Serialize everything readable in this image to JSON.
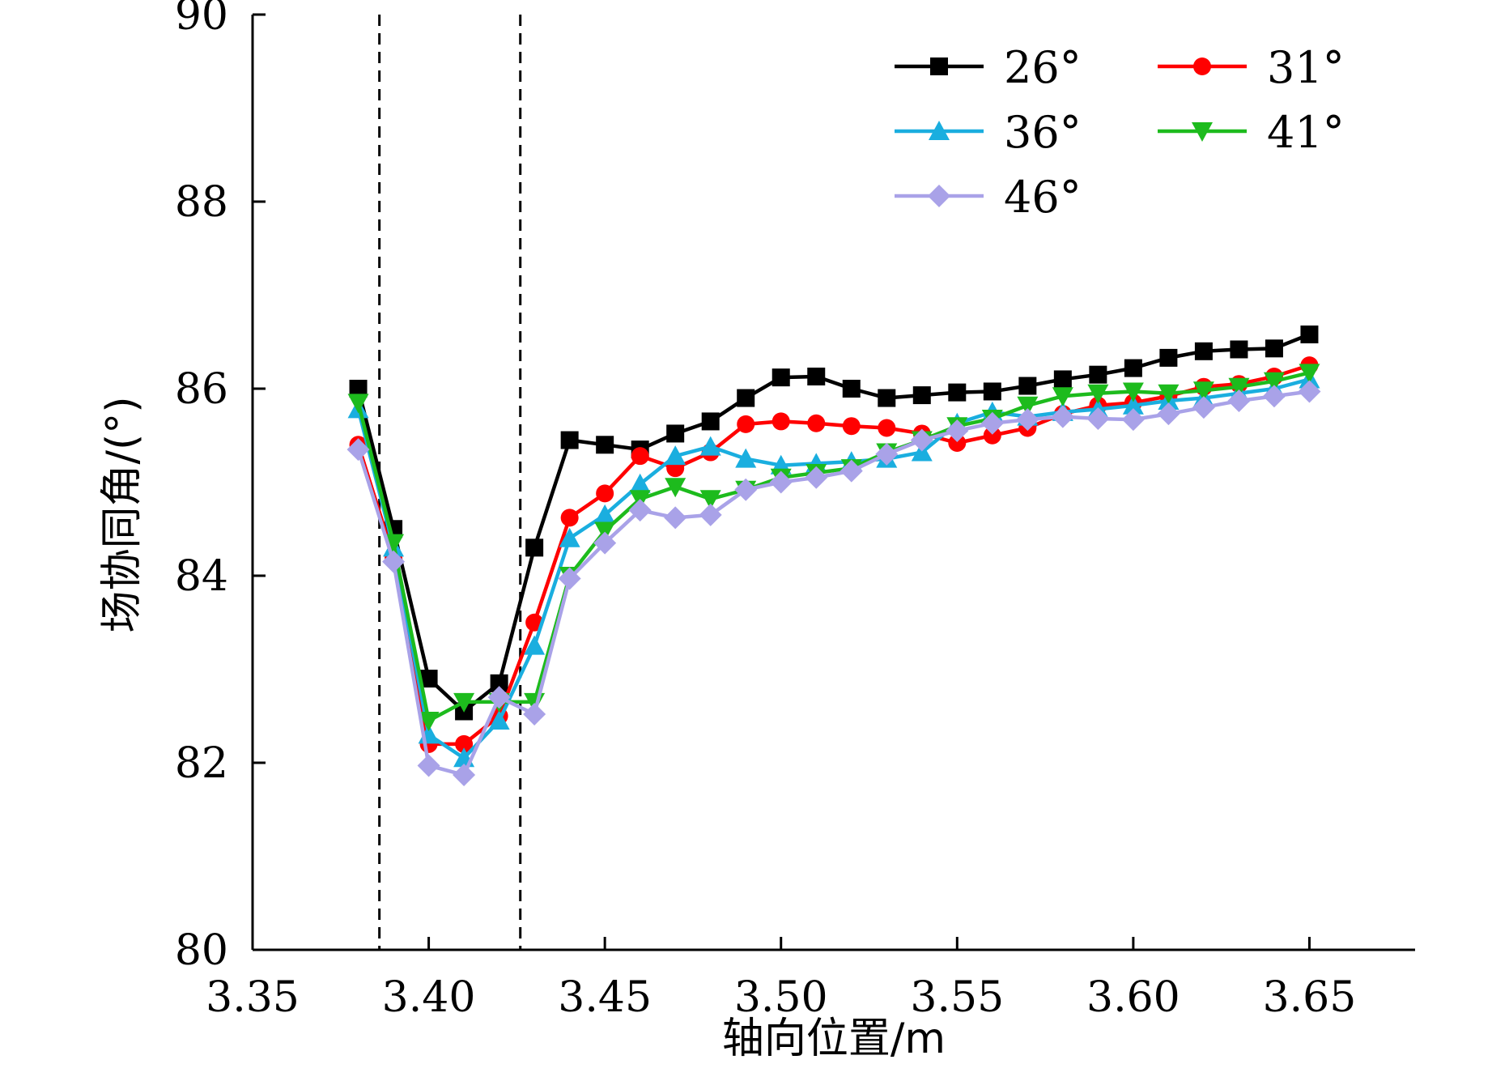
{
  "chart_data": {
    "type": "line",
    "title": "",
    "xlabel": "轴向位置/m",
    "ylabel": "场协同角/(°)",
    "xlim": [
      3.35,
      3.68
    ],
    "ylim": [
      80,
      90
    ],
    "xticks": [
      3.35,
      3.4,
      3.45,
      3.5,
      3.55,
      3.6,
      3.65
    ],
    "xtick_labels": [
      "3.35",
      "3.40",
      "3.45",
      "3.50",
      "3.55",
      "3.60",
      "3.65"
    ],
    "yticks": [
      80,
      82,
      84,
      86,
      88,
      90
    ],
    "ytick_labels": [
      "80",
      "82",
      "84",
      "86",
      "88",
      "90"
    ],
    "reference_lines_x": [
      3.386,
      3.426
    ],
    "grid": false,
    "legend_position": "top-right",
    "x": [
      3.38,
      3.39,
      3.4,
      3.41,
      3.42,
      3.43,
      3.44,
      3.45,
      3.46,
      3.47,
      3.48,
      3.49,
      3.5,
      3.51,
      3.52,
      3.53,
      3.54,
      3.55,
      3.56,
      3.57,
      3.58,
      3.59,
      3.6,
      3.61,
      3.62,
      3.63,
      3.64,
      3.65
    ],
    "series": [
      {
        "name": "26°",
        "color": "#000000",
        "marker": "square",
        "values": [
          86.0,
          84.5,
          82.9,
          82.55,
          82.85,
          84.3,
          85.45,
          85.4,
          85.35,
          85.52,
          85.65,
          85.9,
          86.12,
          86.13,
          86.0,
          85.9,
          85.93,
          85.96,
          85.97,
          86.03,
          86.1,
          86.15,
          86.22,
          86.33,
          86.4,
          86.42,
          86.43,
          86.58
        ]
      },
      {
        "name": "31°",
        "color": "#ff0000",
        "marker": "circle",
        "values": [
          85.4,
          84.2,
          82.2,
          82.2,
          82.5,
          83.5,
          84.62,
          84.88,
          85.28,
          85.15,
          85.32,
          85.62,
          85.65,
          85.63,
          85.6,
          85.58,
          85.52,
          85.42,
          85.5,
          85.58,
          85.73,
          85.82,
          85.85,
          85.92,
          86.02,
          86.05,
          86.13,
          86.25
        ]
      },
      {
        "name": "36°",
        "color": "#1aaedf",
        "marker": "triangle-up",
        "values": [
          85.78,
          84.3,
          82.3,
          82.05,
          82.45,
          83.25,
          84.4,
          84.65,
          84.98,
          85.28,
          85.38,
          85.25,
          85.18,
          85.2,
          85.22,
          85.25,
          85.32,
          85.63,
          85.75,
          85.7,
          85.75,
          85.78,
          85.82,
          85.87,
          85.9,
          85.95,
          86.0,
          86.1
        ]
      },
      {
        "name": "41°",
        "color": "#1dbb1d",
        "marker": "triangle-down",
        "values": [
          85.85,
          84.35,
          82.45,
          82.65,
          82.65,
          82.65,
          84.0,
          84.48,
          84.82,
          84.95,
          84.82,
          84.92,
          85.05,
          85.1,
          85.15,
          85.32,
          85.45,
          85.6,
          85.68,
          85.82,
          85.92,
          85.95,
          85.97,
          85.95,
          85.98,
          86.02,
          86.08,
          86.17
        ]
      },
      {
        "name": "46°",
        "color": "#a9a2e8",
        "marker": "diamond",
        "values": [
          85.35,
          84.15,
          81.97,
          81.87,
          82.7,
          82.52,
          83.97,
          84.35,
          84.7,
          84.62,
          84.65,
          84.92,
          85.0,
          85.05,
          85.12,
          85.3,
          85.45,
          85.55,
          85.63,
          85.67,
          85.7,
          85.68,
          85.67,
          85.73,
          85.8,
          85.87,
          85.92,
          85.97
        ]
      }
    ]
  }
}
